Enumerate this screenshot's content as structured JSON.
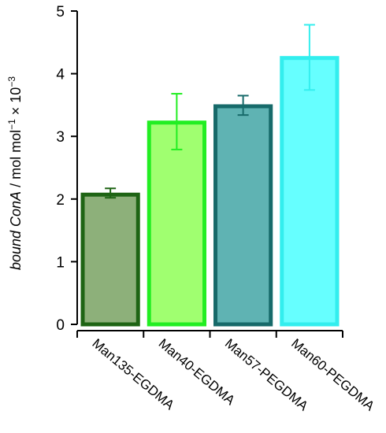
{
  "chart_data": {
    "type": "bar",
    "categories": [
      "Man135-EGDMA",
      "Man40-EGDMA",
      "Man57-PEGDMA",
      "Man60-PEGDMA"
    ],
    "values": [
      2.07,
      3.22,
      3.48,
      4.25
    ],
    "error_plus": [
      0.1,
      0.46,
      0.17,
      0.53
    ],
    "error_minus": [
      0.05,
      0.43,
      0.14,
      0.51
    ],
    "ylabel": {
      "italic": "bound ConA",
      "unit": " / mol mol",
      "sup1": "−1",
      "scale": " × 10",
      "sup2": "−3"
    },
    "ylim": [
      0,
      5
    ],
    "yticks": [
      "0",
      "1",
      "2",
      "3",
      "4",
      "5"
    ],
    "grid": false,
    "colors": {
      "fills": [
        "#8db07a",
        "#a0ff70",
        "#5fb3b3",
        "#66ffff"
      ],
      "strokes": [
        "#1e6414",
        "#22ee22",
        "#176a6a",
        "#33eeee"
      ]
    }
  }
}
